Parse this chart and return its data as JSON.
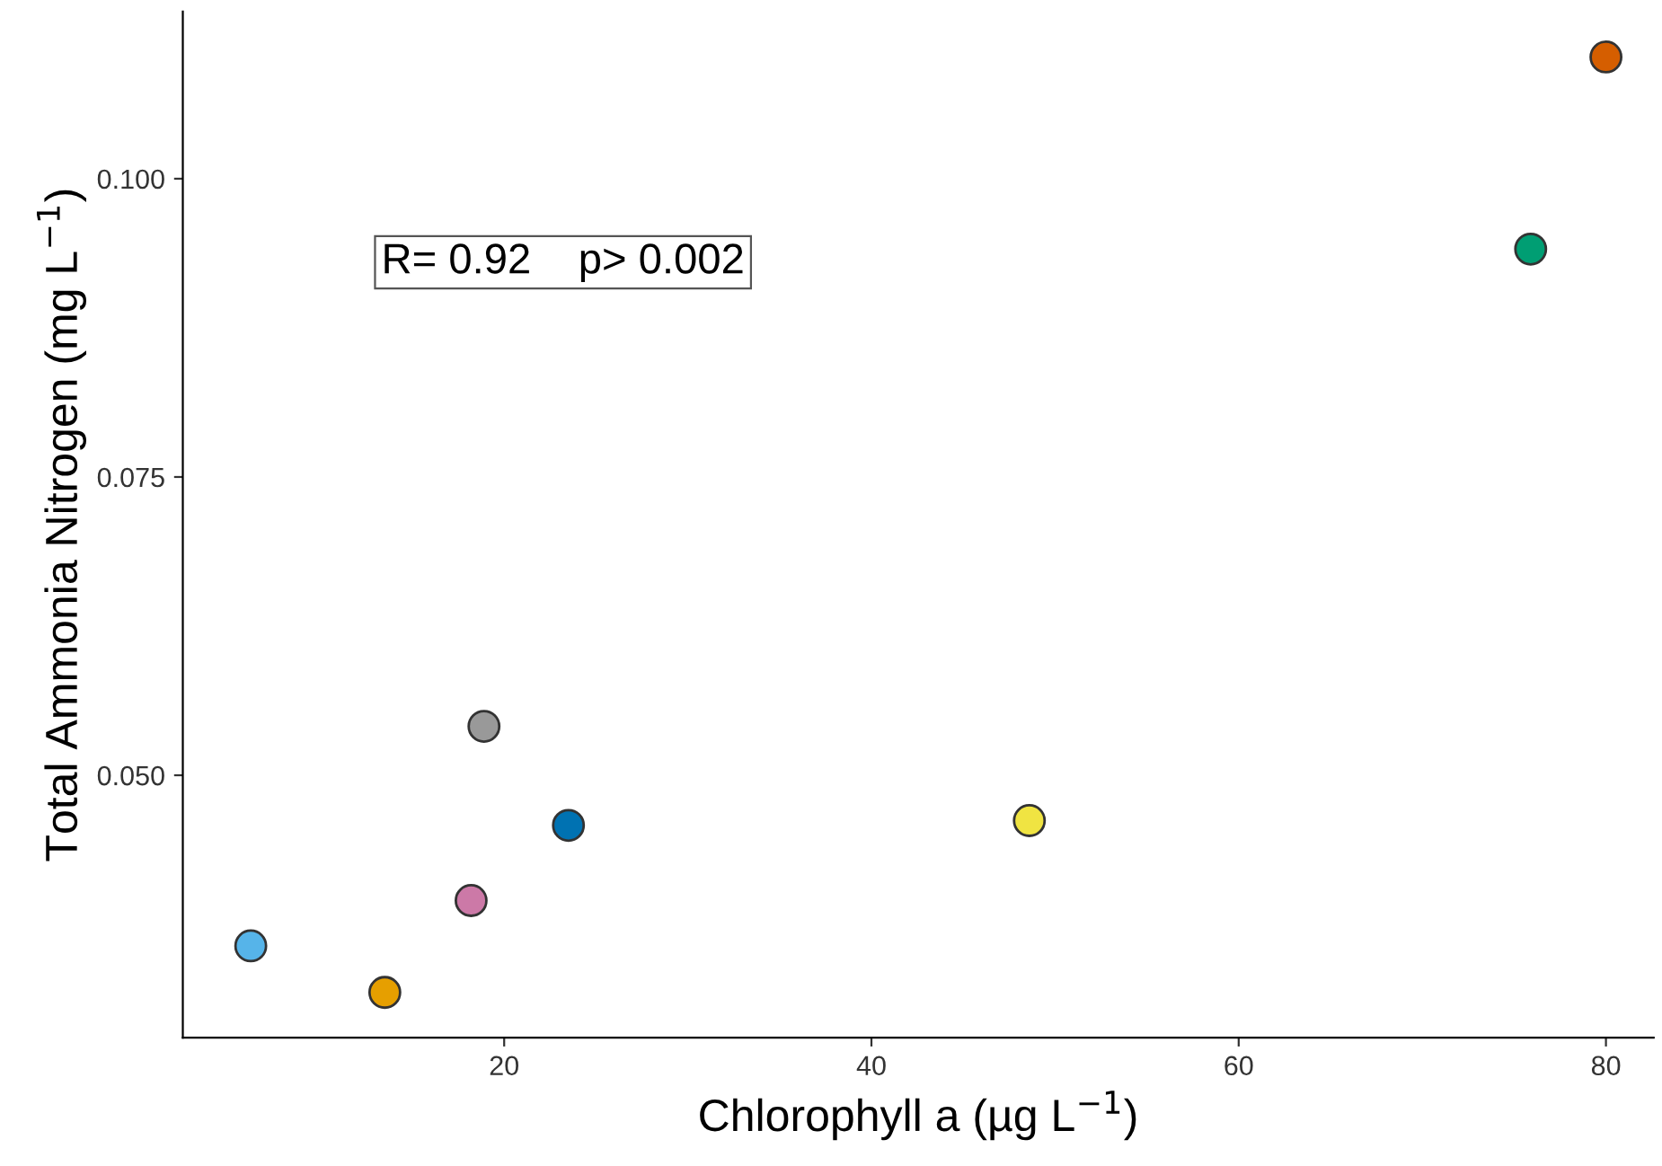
{
  "chart_data": {
    "type": "scatter",
    "xlabel": "Chlorophyll a (µg L$^{−1}$)",
    "ylabel": "Total Ammonia Nitrogen (mg L$^{−1}$)",
    "annotations": [
      "R= 0.92    p> 0.002"
    ],
    "x": [
      6.2,
      13.5,
      18.2,
      18.9,
      23.5,
      48.6,
      75.9,
      80.0
    ],
    "series": [
      {
        "values": [
          0.0357,
          0.0318,
          0.0395,
          0.0541,
          0.0458,
          0.0462,
          0.0941,
          0.1102
        ],
        "colors": [
          "#56b4e9",
          "#e69f00",
          "#cc79a7",
          "#999999",
          "#0072b2",
          "#f0e442",
          "#009e73",
          "#d55e00"
        ]
      }
    ],
    "xlim": [
      2.5,
      82.6
    ],
    "ylim": [
      0.028,
      0.114
    ],
    "xticks": [
      20,
      40,
      60,
      80
    ],
    "yticks": [
      {
        "value": 0.05,
        "label": "0.050"
      },
      {
        "value": 0.075,
        "label": "0.075"
      },
      {
        "value": 0.1,
        "label": "0.100"
      }
    ],
    "marker": "circle",
    "grid": false,
    "legend": false
  }
}
